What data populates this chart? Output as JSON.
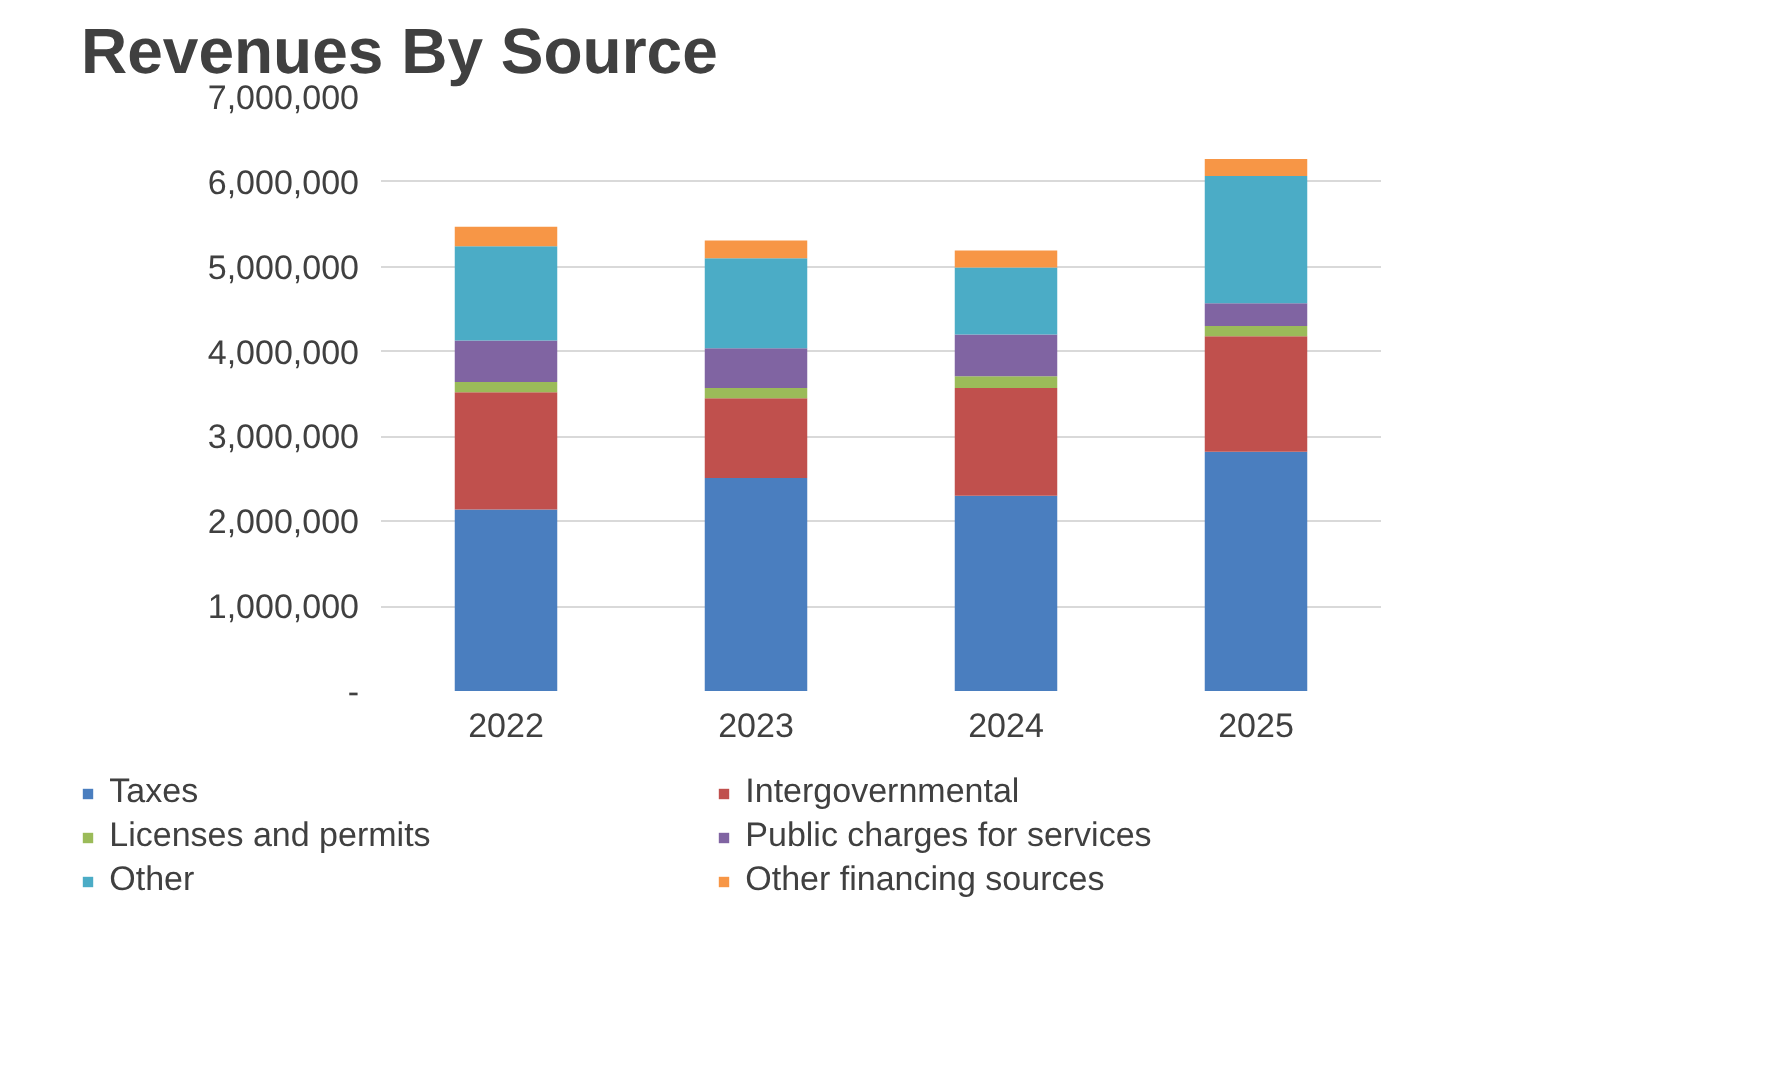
{
  "chart_data": {
    "type": "bar",
    "stacked": true,
    "title": "Revenues By Source",
    "categories": [
      "2022",
      "2023",
      "2024",
      "2025"
    ],
    "series": [
      {
        "name": "Taxes",
        "color": "#4a7ebf",
        "values": [
          2140000,
          2510000,
          2300000,
          2820000
        ]
      },
      {
        "name": "Intergovernmental",
        "color": "#c0504d",
        "values": [
          1380000,
          940000,
          1270000,
          1360000
        ]
      },
      {
        "name": "Licenses and permits",
        "color": "#9bbb59",
        "values": [
          120000,
          120000,
          140000,
          120000
        ]
      },
      {
        "name": "Public charges for services",
        "color": "#8064a2",
        "values": [
          490000,
          470000,
          490000,
          270000
        ]
      },
      {
        "name": "Other",
        "color": "#4bacc6",
        "values": [
          1110000,
          1060000,
          790000,
          1500000
        ]
      },
      {
        "name": "Other financing sources",
        "color": "#f79646",
        "values": [
          230000,
          210000,
          200000,
          200000
        ]
      }
    ],
    "ylim": [
      0,
      7000000
    ],
    "yticks": [
      {
        "value": 0,
        "label": "-"
      },
      {
        "value": 1000000,
        "label": "1,000,000"
      },
      {
        "value": 2000000,
        "label": "2,000,000"
      },
      {
        "value": 3000000,
        "label": "3,000,000"
      },
      {
        "value": 4000000,
        "label": "4,000,000"
      },
      {
        "value": 5000000,
        "label": "5,000,000"
      },
      {
        "value": 6000000,
        "label": "6,000,000"
      },
      {
        "value": 7000000,
        "label": "7,000,000"
      }
    ],
    "grid": "y",
    "legend": "bottom"
  }
}
